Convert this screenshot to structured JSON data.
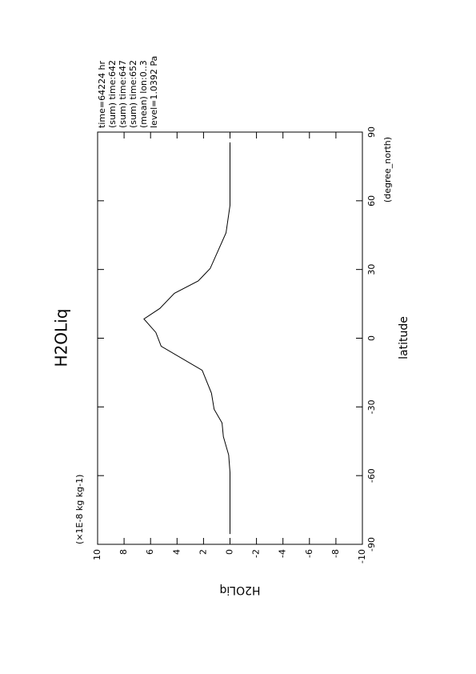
{
  "chart_data": {
    "type": "line",
    "title": "H2OLiq",
    "x_label": "latitude",
    "x_unit": "(degree_north)",
    "y_label": "H2OLiq",
    "y_unit": "(×1E-8 kg kg-1)",
    "info": [
      "time=64224 hr",
      "(sum) time:642",
      "(sum) time:647",
      "(sum) time:652",
      "(mean) lon:0..3",
      "level=1.0392 Pa"
    ],
    "x": [
      -85.5,
      -58.6,
      -51,
      -43,
      -37,
      -31,
      -24,
      -14,
      -3.5,
      2.5,
      8.4,
      13,
      19.6,
      25,
      30.4,
      46,
      58,
      85.5
    ],
    "series": [
      {
        "name": "H2OLiq",
        "color": "#000000",
        "values": [
          0,
          0,
          0.1,
          0.5,
          0.6,
          1.2,
          1.4,
          2.1,
          5.2,
          5.6,
          6.5,
          5.3,
          4.2,
          2.4,
          1.5,
          0.3,
          0,
          0
        ]
      }
    ],
    "xlim": [
      -90,
      90
    ],
    "xticks": [
      -90,
      -60,
      -30,
      0,
      30,
      60,
      90
    ],
    "ylim": [
      -10,
      10
    ],
    "yticks": [
      -10,
      -8,
      -6,
      -4,
      -2,
      0,
      2,
      4,
      6,
      8,
      10
    ]
  }
}
